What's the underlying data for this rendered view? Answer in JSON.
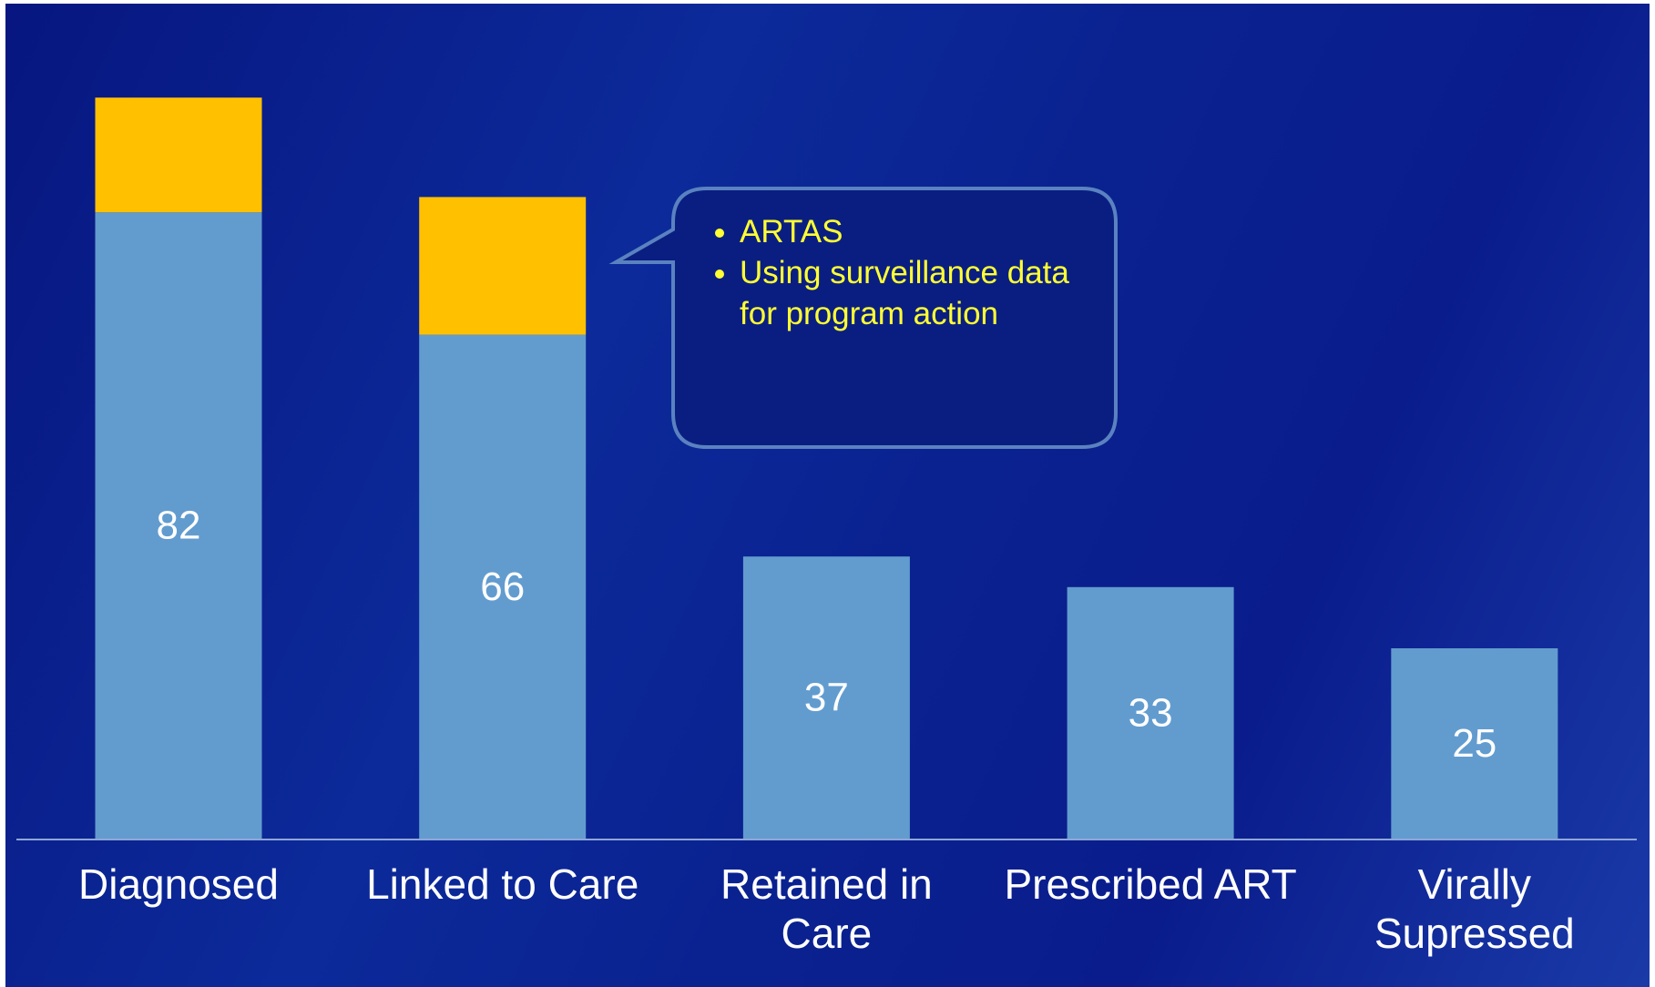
{
  "chart_data": {
    "type": "bar",
    "stacked": true,
    "categories": [
      "Diagnosed",
      "Linked to Care",
      "Retained in Care",
      "Prescribed ART",
      "Virally Supressed"
    ],
    "series": [
      {
        "color": "#629ccf",
        "values": [
          82,
          66,
          37,
          33,
          25
        ]
      },
      {
        "color": "#ffc000",
        "values": [
          15,
          18,
          null,
          null,
          null
        ]
      }
    ],
    "ylim": [
      0,
      100
    ],
    "annotation": {
      "items": [
        "ARTAS",
        "Using surveillance data for program action"
      ]
    }
  }
}
